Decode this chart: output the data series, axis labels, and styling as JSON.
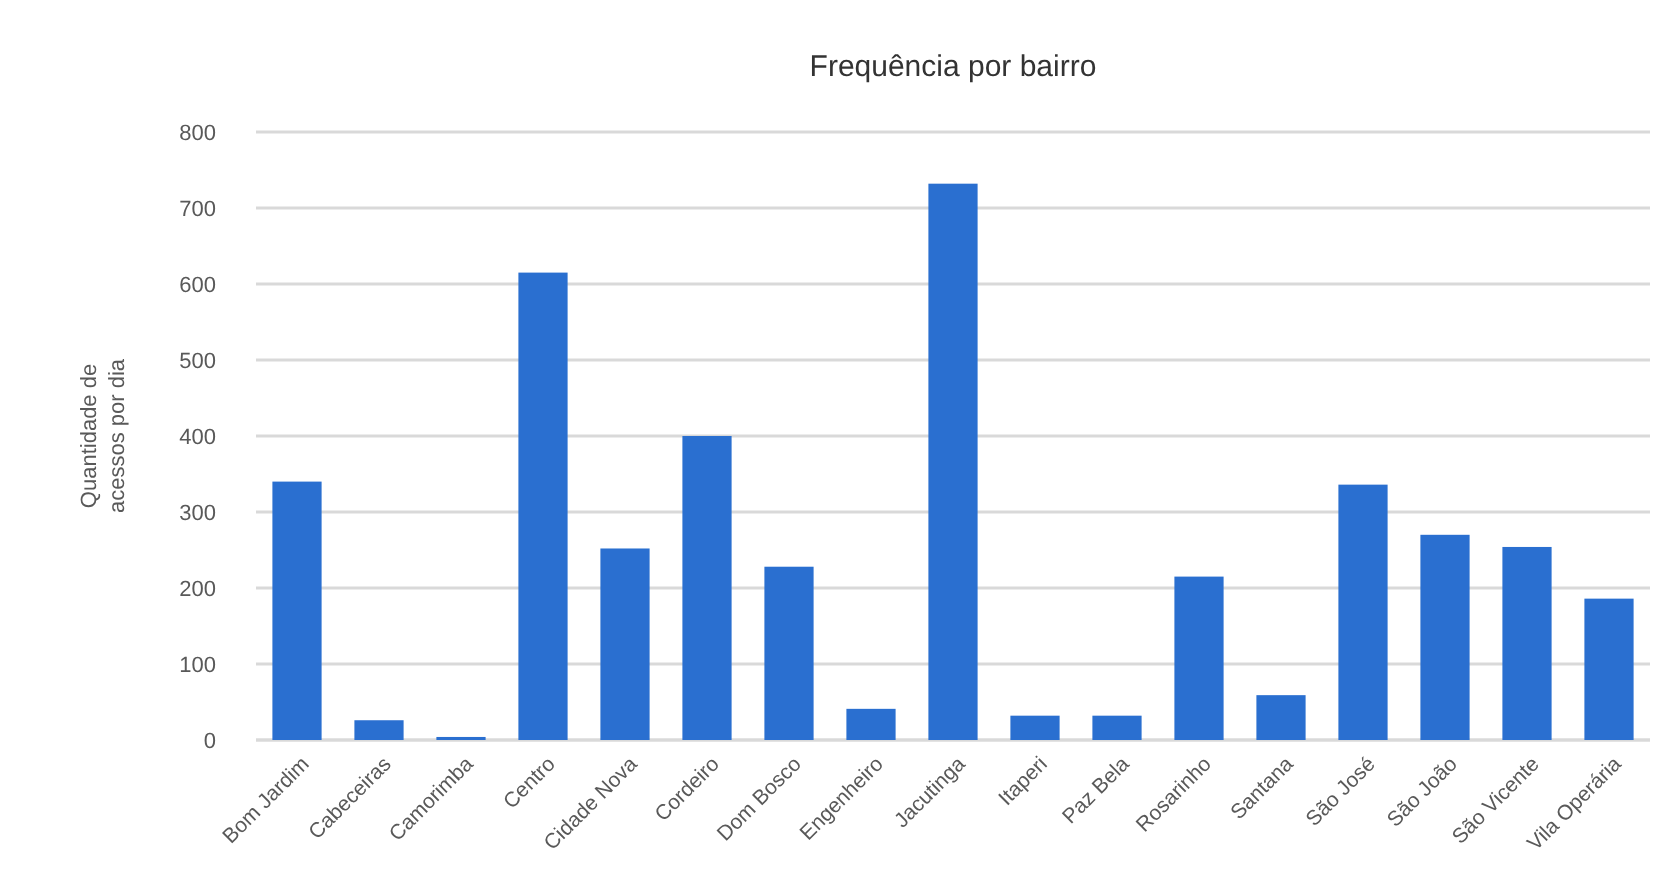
{
  "chart_data": {
    "type": "bar",
    "title": "Frequência por bairro",
    "ylabel": "Quantidade de acessos por dia",
    "categories": [
      "Bom Jardim",
      "Cabeceiras",
      "Camorimba",
      "Centro",
      "Cidade Nova",
      "Cordeiro",
      "Dom Bosco",
      "Engenheiro",
      "Jacutinga",
      "Itaperi",
      "Paz Bela",
      "Rosarinho",
      "Santana",
      "São José",
      "São João",
      "São Vicente",
      "Vila Operária"
    ],
    "values": [
      340,
      26,
      4,
      615,
      252,
      400,
      228,
      41,
      732,
      32,
      32,
      215,
      59,
      336,
      270,
      254,
      186
    ],
    "color": "#2a6fd0",
    "ylim": [
      0,
      800
    ],
    "yticks": [
      0,
      100,
      200,
      300,
      400,
      500,
      600,
      700,
      800
    ],
    "grid": "y"
  }
}
